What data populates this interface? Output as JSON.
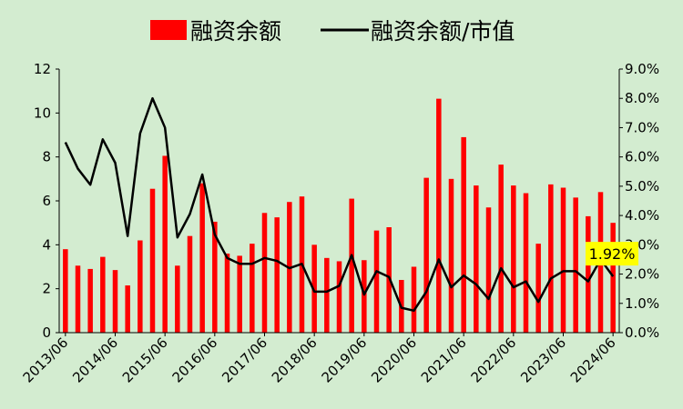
{
  "chart_data": {
    "type": "bar+line",
    "x_tick_labels": [
      "2013/06",
      "2014/06",
      "2015/06",
      "2016/06",
      "2017/06",
      "2018/06",
      "2019/06",
      "2020/06",
      "2021/06",
      "2022/06",
      "2023/06",
      "2024/06"
    ],
    "series": [
      {
        "name": "融资余额",
        "type": "bar",
        "axis": "left",
        "color": "#ff0000",
        "values": [
          3.8,
          3.05,
          2.9,
          3.45,
          2.85,
          2.15,
          4.2,
          6.55,
          8.05,
          3.05,
          4.4,
          6.8,
          5.05,
          3.6,
          3.5,
          4.05,
          5.45,
          5.25,
          5.95,
          6.2,
          4.0,
          3.4,
          3.25,
          6.1,
          3.3,
          4.65,
          4.8,
          2.4,
          3.0,
          7.05,
          10.65,
          7.0,
          8.9,
          6.7,
          5.7,
          7.65,
          6.7,
          6.35,
          4.05,
          6.75,
          6.6,
          6.15,
          5.3,
          6.4,
          5.0
        ]
      },
      {
        "name": "融资余额/市值",
        "type": "line",
        "axis": "right",
        "color": "#000000",
        "values": [
          0.065,
          0.056,
          0.0505,
          0.066,
          0.058,
          0.033,
          0.068,
          0.08,
          0.07,
          0.0325,
          0.0405,
          0.054,
          0.0335,
          0.0255,
          0.0235,
          0.0235,
          0.0255,
          0.0245,
          0.022,
          0.0235,
          0.014,
          0.014,
          0.016,
          0.0265,
          0.013,
          0.021,
          0.019,
          0.0085,
          0.0075,
          0.014,
          0.025,
          0.0155,
          0.0195,
          0.0165,
          0.0115,
          0.022,
          0.0155,
          0.0175,
          0.0105,
          0.0185,
          0.021,
          0.021,
          0.0175,
          0.025,
          0.0192
        ]
      }
    ],
    "y_left": {
      "min": 0,
      "max": 12,
      "ticks": [
        "0",
        "2",
        "4",
        "6",
        "8",
        "10",
        "12"
      ]
    },
    "y_right": {
      "min": 0,
      "max": 0.09,
      "ticks": [
        "0.0%",
        "1.0%",
        "2.0%",
        "3.0%",
        "4.0%",
        "5.0%",
        "6.0%",
        "7.0%",
        "8.0%",
        "9.0%"
      ]
    },
    "callout": {
      "text": "1.92%",
      "color": "#ffff00"
    },
    "legend_position": "top",
    "grid": false,
    "background": "#d3ecd0"
  }
}
